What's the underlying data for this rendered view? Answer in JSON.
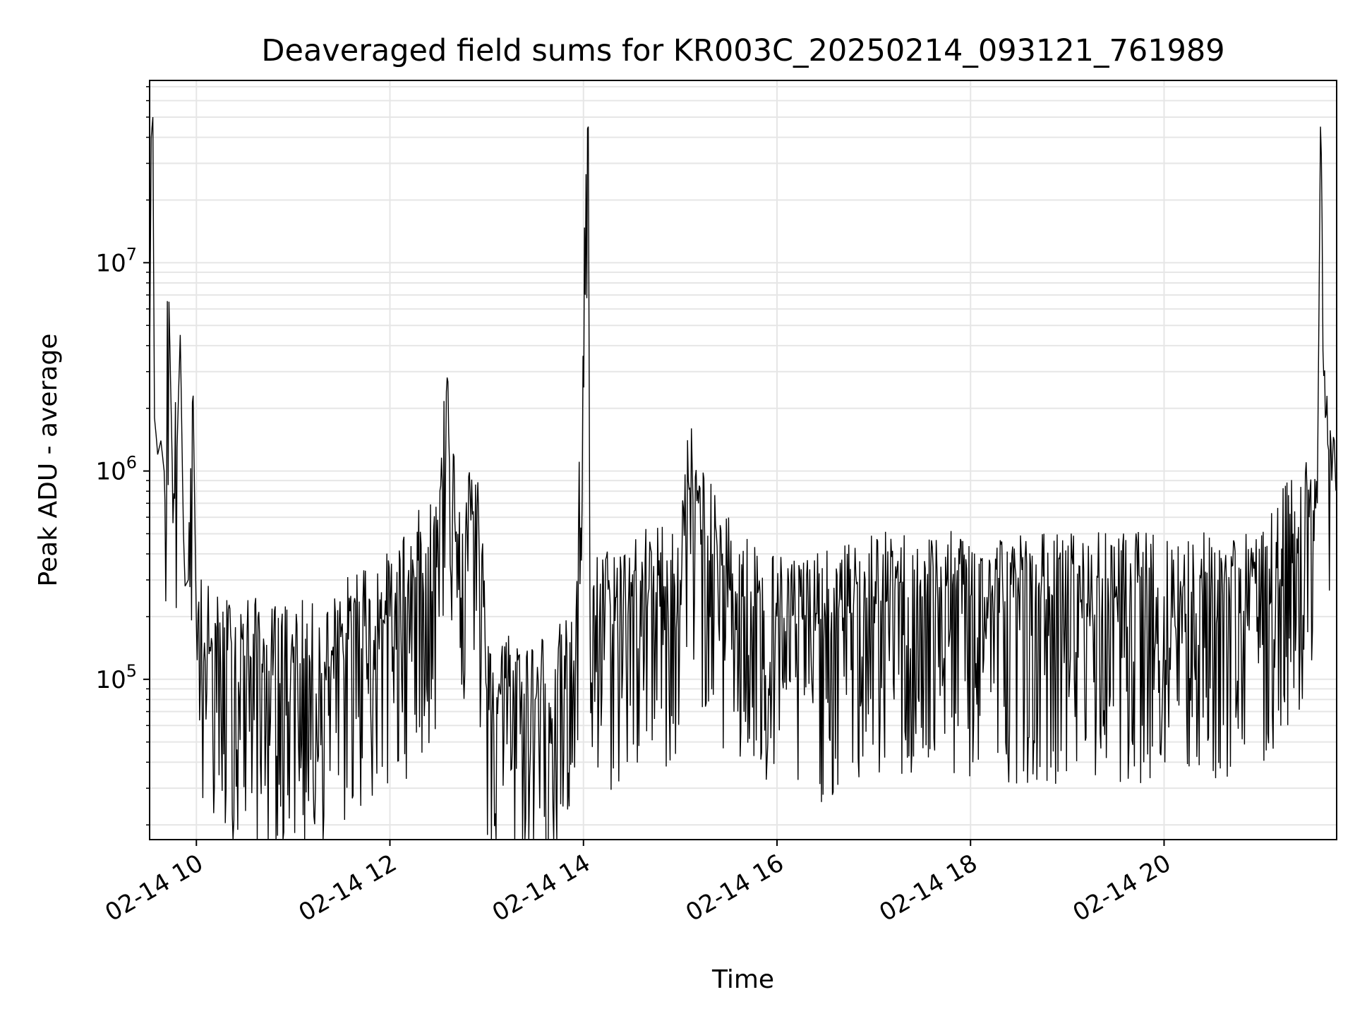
{
  "chart_data": {
    "type": "line",
    "title": "Deaveraged field sums for KR003C_20250214_093121_761989",
    "xlabel": "Time",
    "ylabel": "Peak ADU - average",
    "yscale": "log",
    "xlim": [
      "02-14 09:31",
      "02-14 21:47"
    ],
    "ylim": [
      17000,
      75000000
    ],
    "x_ticks": [
      "02-14 10",
      "02-14 12",
      "02-14 14",
      "02-14 16",
      "02-14 18",
      "02-14 20"
    ],
    "y_ticks": [
      {
        "base": "10",
        "exp": "5",
        "value": 100000
      },
      {
        "base": "10",
        "exp": "6",
        "value": 1000000
      },
      {
        "base": "10",
        "exp": "7",
        "value": 10000000
      }
    ],
    "grid": true,
    "line_color": "#000000",
    "grid_color": "#e6e6e6",
    "series": [
      {
        "x": [
          "02-14 09:31",
          "02-14 09:32",
          "02-14 09:33",
          "02-14 09:34",
          "02-14 09:35",
          "02-14 09:36",
          "02-14 09:38",
          "02-14 09:40",
          "02-14 09:43",
          "02-14 09:45",
          "02-14 09:48",
          "02-14 09:50",
          "02-14 09:52",
          "02-14 09:53",
          "02-14 09:55",
          "02-14 09:58",
          "02-14 10:00",
          "02-14 10:05",
          "02-14 10:15",
          "02-14 10:30",
          "02-14 10:45",
          "02-14 11:00",
          "02-14 11:20",
          "02-14 11:40",
          "02-14 12:00",
          "02-14 12:15",
          "02-14 12:30",
          "02-14 12:35",
          "02-14 12:45",
          "02-14 12:55",
          "02-14 13:00",
          "02-14 13:30",
          "02-14 13:55",
          "02-14 14:03",
          "02-14 14:04",
          "02-14 14:10",
          "02-14 14:30",
          "02-14 15:00",
          "02-14 15:05",
          "02-14 15:20",
          "02-14 15:40",
          "02-14 16:00",
          "02-14 16:30",
          "02-14 17:00",
          "02-14 17:30",
          "02-14 18:00",
          "02-14 18:30",
          "02-14 19:00",
          "02-14 19:30",
          "02-14 20:00",
          "02-14 20:30",
          "02-14 21:00",
          "02-14 21:20",
          "02-14 21:30",
          "02-14 21:35",
          "02-14 21:37",
          "02-14 21:40",
          "02-14 21:44",
          "02-14 21:47"
        ],
        "y": [
          3000000,
          40000000,
          50000000,
          1800000,
          1500000,
          1200000,
          1400000,
          1000000,
          6500000,
          1100000,
          1300000,
          4500000,
          500000,
          280000,
          300000,
          2300000,
          180000,
          150000,
          120000,
          130000,
          110000,
          120000,
          110000,
          180000,
          200000,
          300000,
          400000,
          2400000,
          500000,
          600000,
          90000,
          80000,
          100000,
          45000000,
          250000,
          200000,
          250000,
          300000,
          900000,
          400000,
          250000,
          200000,
          200000,
          250000,
          250000,
          250000,
          250000,
          250000,
          250000,
          250000,
          250000,
          250000,
          500000,
          600000,
          700000,
          45000000,
          1800000,
          900000,
          800000
        ]
      }
    ]
  }
}
